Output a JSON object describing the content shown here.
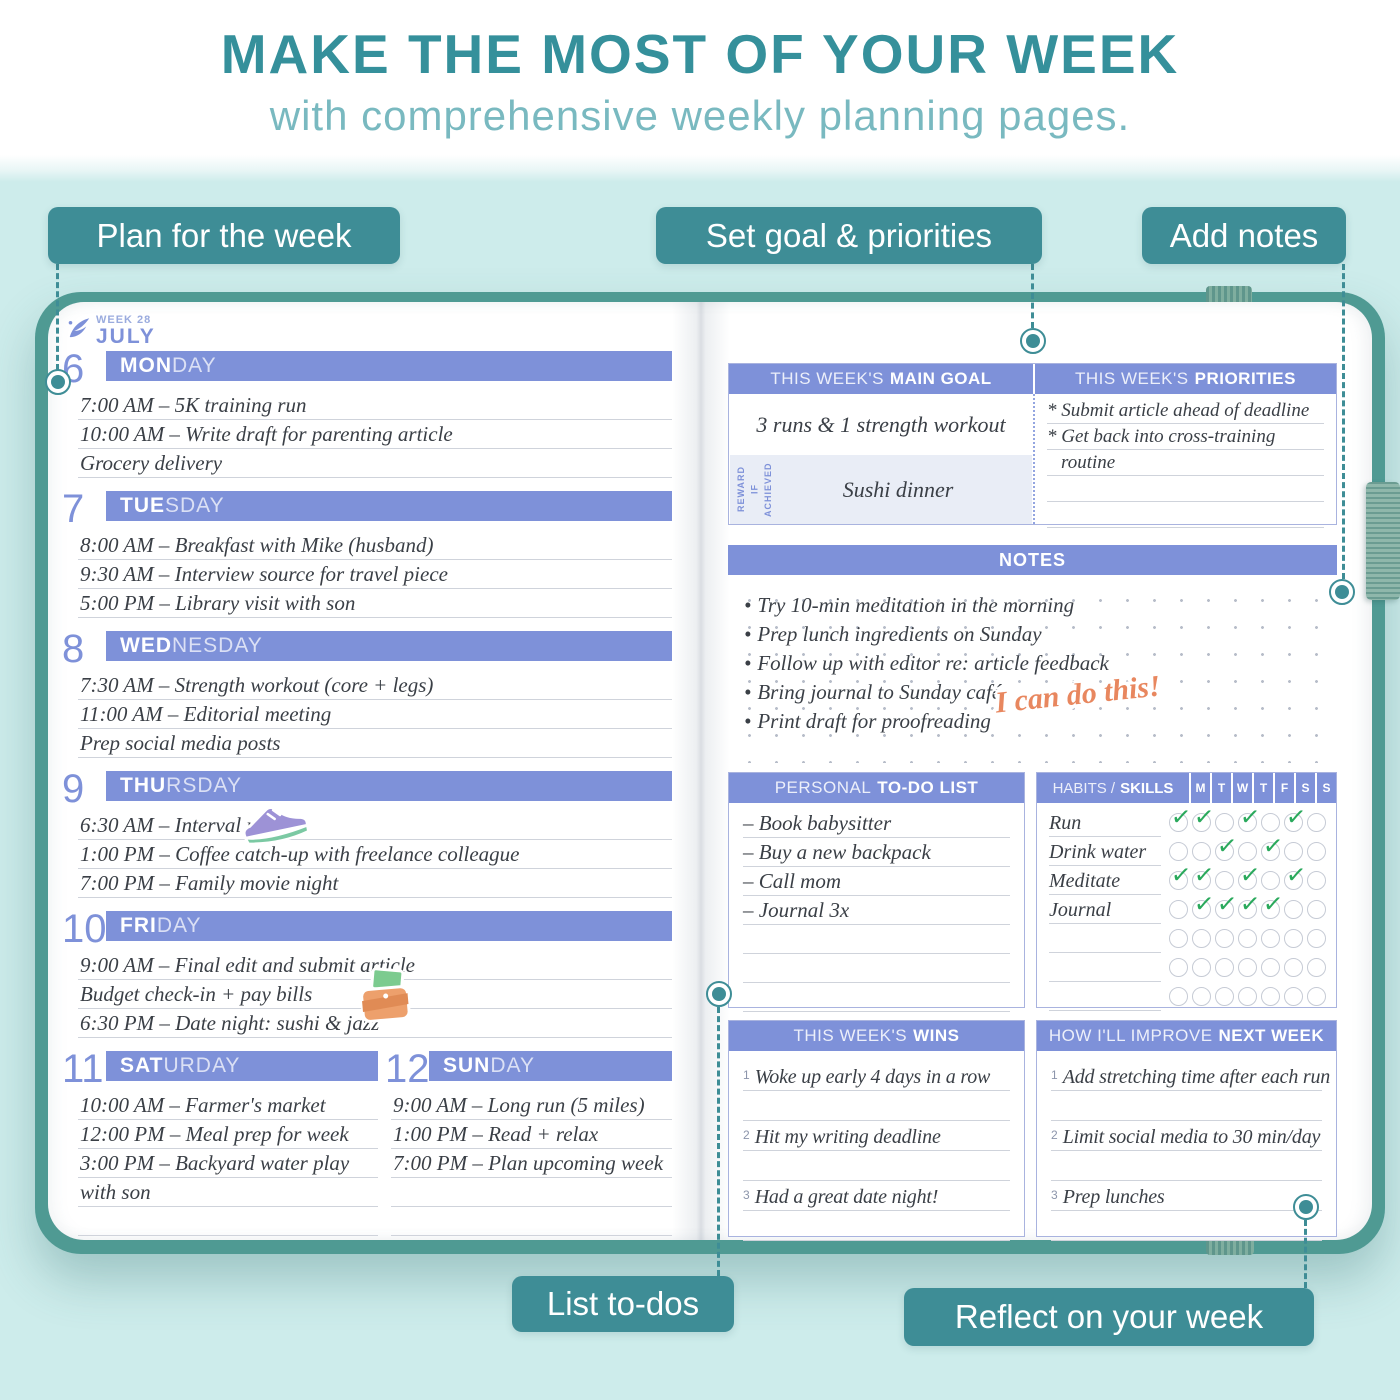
{
  "header": {
    "title": "MAKE THE MOST OF YOUR WEEK",
    "subtitle": "with comprehensive weekly planning pages."
  },
  "callouts": {
    "plan": "Plan for the week",
    "goals": "Set goal & priorities",
    "notes": "Add notes",
    "todos": "List to-dos",
    "reflect": "Reflect on your week"
  },
  "planner": {
    "week_label": "WEEK 28",
    "month": "JULY",
    "days": [
      {
        "num": "6",
        "bold": "MON",
        "rest": "DAY",
        "entries": [
          "7:00 AM – 5K training run",
          "10:00 AM – Write draft for parenting article",
          "Grocery delivery"
        ]
      },
      {
        "num": "7",
        "bold": "TUE",
        "rest": "SDAY",
        "entries": [
          "8:00 AM – Breakfast with Mike (husband)",
          "9:30 AM – Interview source for travel piece",
          "5:00 PM – Library visit with son"
        ]
      },
      {
        "num": "8",
        "bold": "WED",
        "rest": "NESDAY",
        "entries": [
          "7:30 AM – Strength workout (core + legs)",
          "11:00 AM – Editorial meeting",
          "Prep social media posts"
        ]
      },
      {
        "num": "9",
        "bold": "THU",
        "rest": "RSDAY",
        "entries": [
          "6:30 AM – Interval run",
          "1:00 PM – Coffee catch-up with freelance colleague",
          "7:00 PM – Family movie night"
        ]
      },
      {
        "num": "10",
        "bold": "FRI",
        "rest": "DAY",
        "entries": [
          "9:00 AM – Final edit and submit article",
          "Budget check-in + pay bills",
          "6:30 PM – Date night: sushi & jazz"
        ]
      },
      {
        "num": "11",
        "bold": "SAT",
        "rest": "URDAY",
        "entries": [
          "10:00 AM – Farmer's market",
          "12:00 PM – Meal prep for week",
          "3:00 PM – Backyard water play",
          "with son"
        ]
      },
      {
        "num": "12",
        "bold": "SUN",
        "rest": "DAY",
        "entries": [
          "9:00 AM – Long run (5 miles)",
          "1:00 PM – Read + relax",
          "7:00 PM – Plan upcoming week"
        ]
      }
    ]
  },
  "right": {
    "goal": {
      "header_light": "THIS WEEK'S",
      "header_bold": "MAIN GOAL",
      "value": "3 runs & 1 strength workout",
      "reward_label": "REWARD IF\nACHIEVED",
      "reward_value": "Sushi dinner"
    },
    "priorities": {
      "header_light": "THIS WEEK'S",
      "header_bold": "PRIORITIES",
      "lines": [
        "* Submit article ahead of deadline",
        "* Get back into cross-training",
        "routine",
        "",
        ""
      ]
    },
    "notes": {
      "header": "NOTES",
      "items": [
        "Try 10-min meditation in the morning",
        "Prep lunch ingredients on Sunday",
        "Follow up with editor re: article feedback",
        "Bring journal to Sunday café",
        "Print draft for proofreading"
      ],
      "sticker_text": "I can do this!"
    },
    "todo": {
      "header_light": "PERSONAL",
      "header_bold": "TO-DO LIST",
      "items": [
        "– Book babysitter",
        "– Buy a new backpack",
        "– Call mom",
        "– Journal 3x",
        "",
        "",
        ""
      ]
    },
    "habits": {
      "header_light": "HABITS /",
      "header_bold": "SKILLS",
      "days": [
        "M",
        "T",
        "W",
        "T",
        "F",
        "S",
        "S"
      ],
      "rows": [
        {
          "name": "Run",
          "checks": [
            1,
            1,
            0,
            1,
            0,
            1,
            0
          ]
        },
        {
          "name": "Drink water",
          "checks": [
            0,
            0,
            1,
            0,
            1,
            0,
            0
          ]
        },
        {
          "name": "Meditate",
          "checks": [
            1,
            1,
            0,
            1,
            0,
            1,
            0
          ]
        },
        {
          "name": "Journal",
          "checks": [
            0,
            1,
            1,
            1,
            1,
            0,
            0
          ]
        },
        {
          "name": "",
          "checks": [
            0,
            0,
            0,
            0,
            0,
            0,
            0
          ]
        },
        {
          "name": "",
          "checks": [
            0,
            0,
            0,
            0,
            0,
            0,
            0
          ]
        },
        {
          "name": "",
          "checks": [
            0,
            0,
            0,
            0,
            0,
            0,
            0
          ]
        }
      ]
    },
    "wins": {
      "header_light": "THIS WEEK'S",
      "header_bold": "WINS",
      "items": [
        {
          "num": "1",
          "text": "Woke up early 4 days in a row"
        },
        {
          "num": "2",
          "text": "Hit my writing deadline"
        },
        {
          "num": "3",
          "text": "Had a great date night!"
        }
      ]
    },
    "improve": {
      "header_light": "HOW I'LL IMPROVE",
      "header_bold": "NEXT WEEK",
      "items": [
        {
          "num": "1",
          "text": "Add stretching time after each run"
        },
        {
          "num": "2",
          "text": "Limit social media to 30 min/day"
        },
        {
          "num": "3",
          "text": "Prep lunches"
        }
      ]
    }
  },
  "colors": {
    "accent_teal": "#3e8d96",
    "title_teal": "#35909b",
    "subtitle_teal": "#79b9c0",
    "cover_teal": "#4f9a93",
    "periwinkle": "#7e91d9",
    "check_green": "#2aa95c",
    "sticker_coral": "#e8875f",
    "mint_background": "#cdeceb"
  }
}
